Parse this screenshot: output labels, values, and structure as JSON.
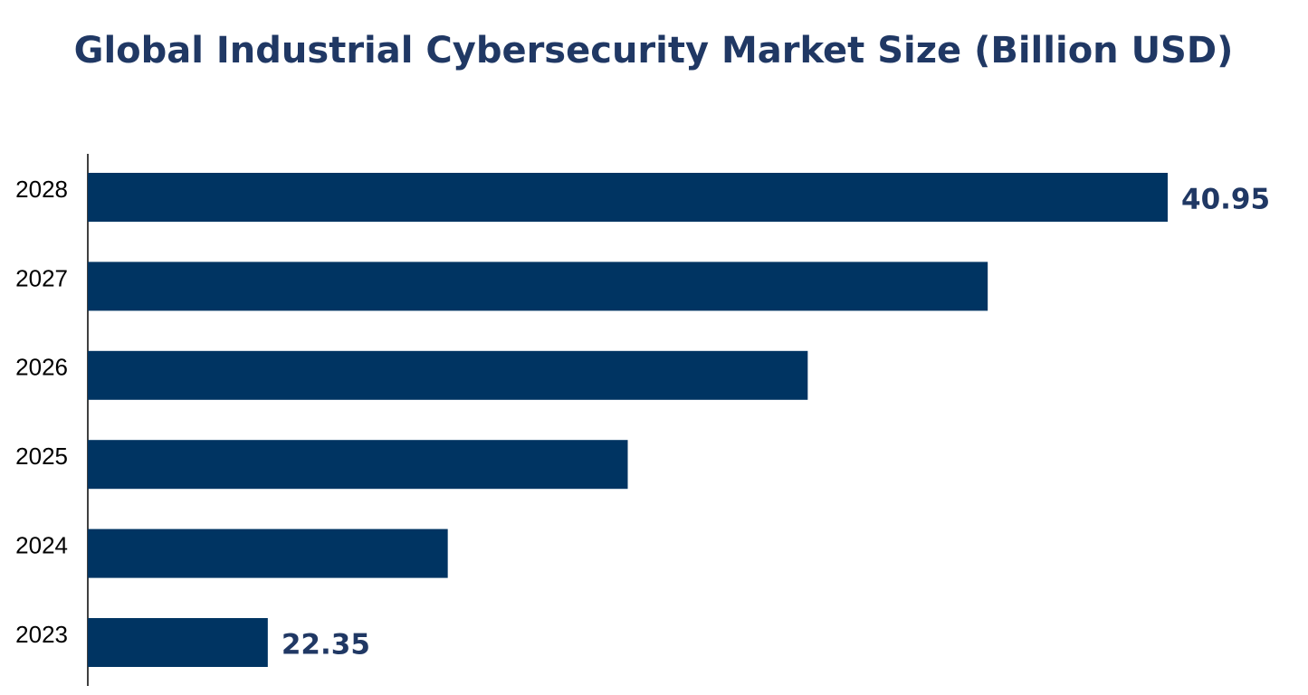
{
  "chart_data": {
    "type": "barh",
    "title": "Global Industrial Cybersecurity Market Size (Billion USD)",
    "categories": [
      "2023",
      "2024",
      "2025",
      "2026",
      "2027",
      "2028"
    ],
    "values": [
      22.35,
      26.07,
      29.79,
      33.51,
      37.23,
      40.95
    ],
    "color": "#003462",
    "xlim": [
      18.63,
      40.95
    ],
    "data_labels": "first-last"
  }
}
